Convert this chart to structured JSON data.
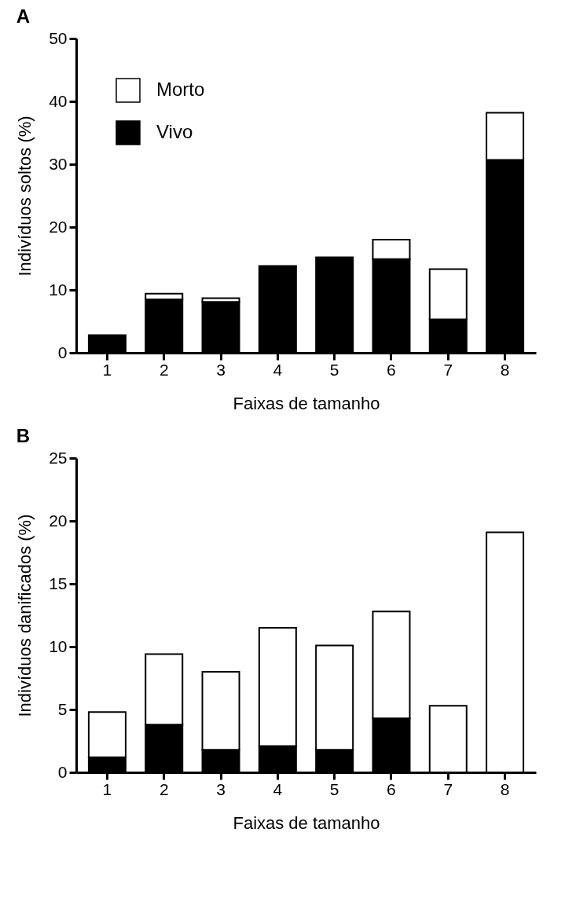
{
  "chart_data": [
    {
      "type": "bar",
      "title": "A",
      "xlabel": "Faixas de tamanho",
      "ylabel": "Indivíduos soltos (%)",
      "categories": [
        "1",
        "2",
        "3",
        "4",
        "5",
        "6",
        "7",
        "8"
      ],
      "stacked": true,
      "legend": "top left",
      "ylim": [
        0,
        50
      ],
      "yticks": [
        0,
        10,
        20,
        30,
        40,
        50
      ],
      "series": [
        {
          "name": "Vivo",
          "color": "#000000",
          "values": [
            2.8,
            8.5,
            8.1,
            13.8,
            15.2,
            14.9,
            5.3,
            30.7
          ]
        },
        {
          "name": "Morto",
          "color": "#ffffff",
          "values": [
            null,
            0.9,
            0.6,
            null,
            null,
            3.1,
            8.0,
            7.5
          ]
        }
      ]
    },
    {
      "type": "bar",
      "title": "B",
      "xlabel": "Faixas de tamanho",
      "ylabel": "Indivíduos danificados (%)",
      "categories": [
        "1",
        "2",
        "3",
        "4",
        "5",
        "6",
        "7",
        "8"
      ],
      "stacked": true,
      "ylim": [
        0,
        25
      ],
      "yticks": [
        0,
        5,
        10,
        15,
        20,
        25
      ],
      "series": [
        {
          "color": "#000000",
          "values": [
            1.2,
            3.8,
            1.8,
            2.1,
            1.8,
            4.3,
            null,
            null
          ]
        },
        {
          "color": "#ffffff",
          "values": [
            3.6,
            5.6,
            6.2,
            9.4,
            8.3,
            8.5,
            5.3,
            19.1
          ]
        }
      ]
    }
  ]
}
